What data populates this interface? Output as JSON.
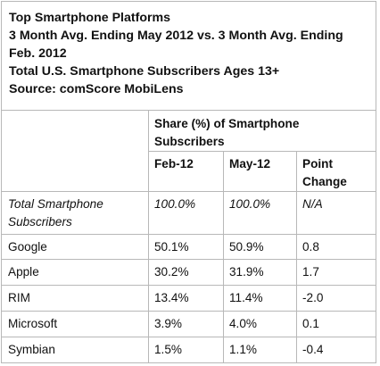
{
  "title_lines": [
    "Top Smartphone Platforms",
    "3 Month Avg. Ending May 2012 vs. 3 Month Avg. Ending",
    "Feb. 2012",
    "Total U.S. Smartphone Subscribers Ages 13+",
    "Source: comScore MobiLens"
  ],
  "group_header": "Share (%) of Smartphone Subscribers",
  "col_headers": [
    "Feb-12",
    "May-12",
    "Point Change"
  ],
  "total_row": {
    "label": "Total Smartphone Subscribers",
    "values": [
      "100.0%",
      "100.0%",
      "N/A"
    ]
  },
  "rows": [
    {
      "label": "Google",
      "values": [
        "50.1%",
        "50.9%",
        "0.8"
      ]
    },
    {
      "label": "Apple",
      "values": [
        "30.2%",
        "31.9%",
        "1.7"
      ]
    },
    {
      "label": "RIM",
      "values": [
        "13.4%",
        "11.4%",
        "-2.0"
      ]
    },
    {
      "label": "Microsoft",
      "values": [
        "3.9%",
        "4.0%",
        "0.1"
      ]
    },
    {
      "label": "Symbian",
      "values": [
        "1.5%",
        "1.1%",
        "-0.4"
      ]
    }
  ],
  "chart_data": {
    "type": "table",
    "title": "Top Smartphone Platforms",
    "columns": [
      "Feb-12",
      "May-12",
      "Point Change"
    ],
    "rows": [
      {
        "label": "Total Smartphone Subscribers",
        "values": [
          "100.0%",
          "100.0%",
          "N/A"
        ]
      },
      {
        "label": "Google",
        "values": [
          50.1,
          50.9,
          0.8
        ]
      },
      {
        "label": "Apple",
        "values": [
          30.2,
          31.9,
          1.7
        ]
      },
      {
        "label": "RIM",
        "values": [
          13.4,
          11.4,
          -2.0
        ]
      },
      {
        "label": "Microsoft",
        "values": [
          3.9,
          4.0,
          0.1
        ]
      },
      {
        "label": "Symbian",
        "values": [
          1.5,
          1.1,
          -0.4
        ]
      }
    ]
  }
}
